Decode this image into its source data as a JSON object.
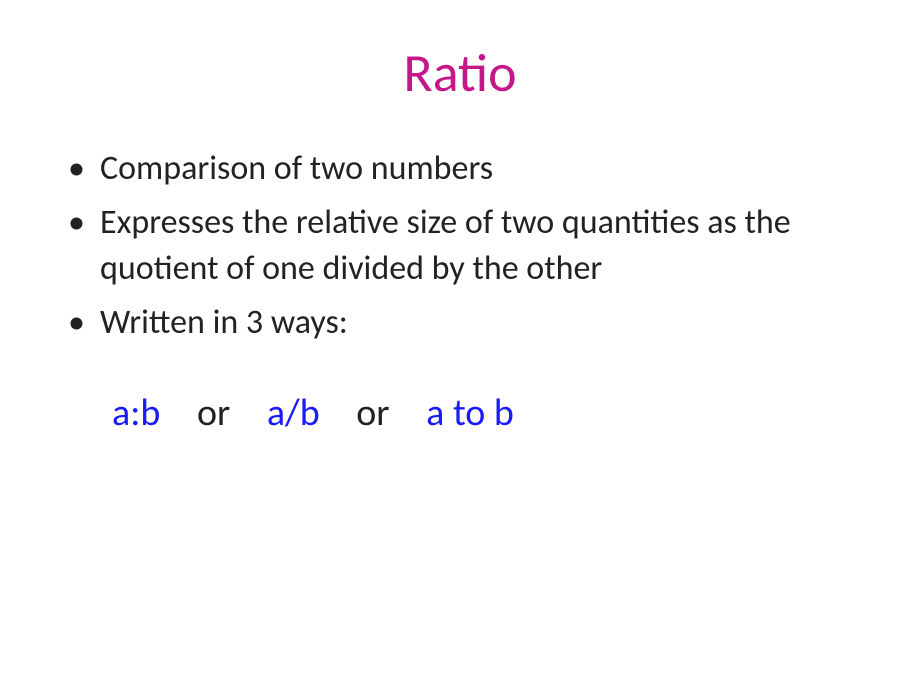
{
  "title": {
    "text": "Ratio",
    "color": "#c6178a"
  },
  "body_color": "#222222",
  "bullets": [
    "Comparison of two numbers",
    "Expresses the relative size of two quantities as the quotient of one divided by the other",
    "Written in 3 ways:"
  ],
  "notations": {
    "color_notation": "#1a1aff",
    "color_sep": "#222222",
    "form1": "a:b",
    "sep": "or",
    "form2": "a/b",
    "form3": "a to b"
  }
}
